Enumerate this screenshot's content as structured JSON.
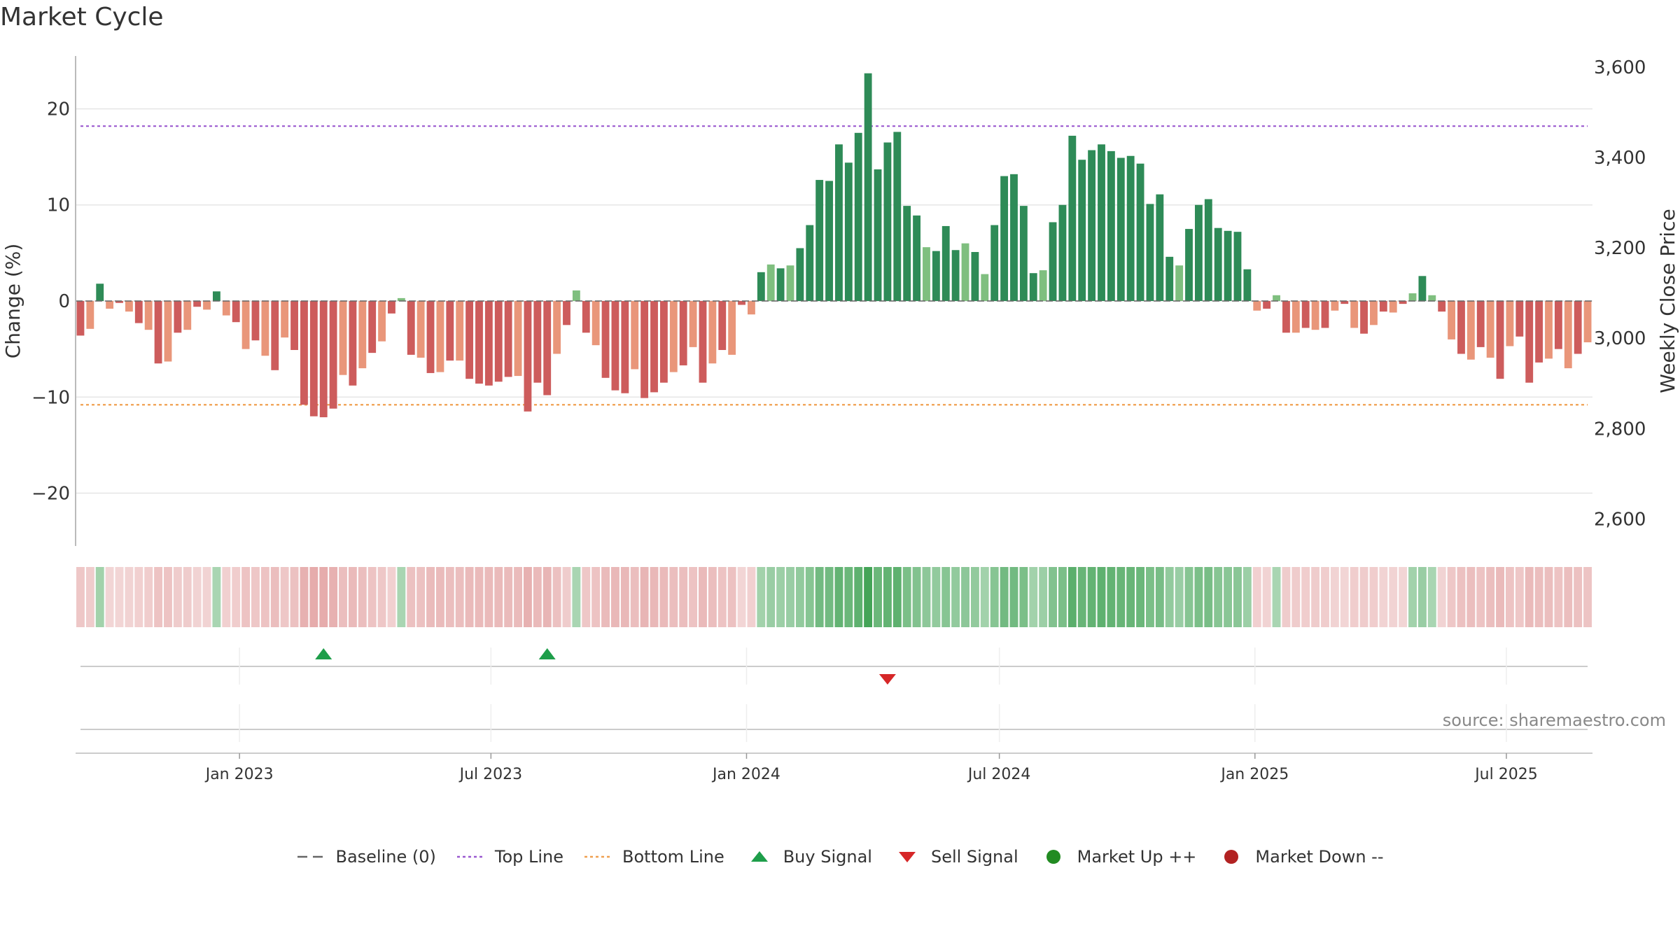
{
  "title": "Market Cycle",
  "source_text": "source: sharemaestro.com",
  "colors": {
    "up_dark": "#2e8b57",
    "up_light": "#7fbf7f",
    "down_dark": "#cd5c5c",
    "down_light": "#e9967a",
    "top_line": "#9b59d0",
    "bottom_line": "#f0a050",
    "buy": "#1e9e4a",
    "sell": "#d62728",
    "market_up": "#228b22",
    "market_down": "#b22222",
    "baseline": "#666666"
  },
  "legend": [
    {
      "key": "baseline",
      "label": "Baseline (0)",
      "symbol": "dash-line"
    },
    {
      "key": "top_line",
      "label": "Top Line",
      "symbol": "dotted-line"
    },
    {
      "key": "bottom_line",
      "label": "Bottom Line",
      "symbol": "dotted-line"
    },
    {
      "key": "buy",
      "label": "Buy Signal",
      "symbol": "triangle-up"
    },
    {
      "key": "sell",
      "label": "Sell Signal",
      "symbol": "triangle-down"
    },
    {
      "key": "market_up",
      "label": "Market Up ++",
      "symbol": "circle"
    },
    {
      "key": "market_down",
      "label": "Market Down --",
      "symbol": "circle"
    }
  ],
  "chart_data": {
    "type": "bar",
    "title": "Market Cycle",
    "ylabel_left": "Change (%)",
    "ylabel_right": "Weekly Close Price",
    "ylim_left": [
      -25.5,
      25.5
    ],
    "ylim_right": [
      2540,
      3625
    ],
    "yticks_left": [
      20,
      10,
      0,
      -10,
      -20
    ],
    "yticks_left_labels": [
      "20",
      "10",
      "0",
      "−10",
      "−20"
    ],
    "yticks_right": [
      3600,
      3400,
      3200,
      3000,
      2800,
      2600
    ],
    "yticks_right_labels": [
      "3,600",
      "3,400",
      "3,200",
      "3,000",
      "2,800",
      "2,600"
    ],
    "top_line": 18.2,
    "bottom_line": -10.8,
    "x_start": "2022-09-05",
    "x_ticks": [
      {
        "label": "Jan 2023",
        "date": "2023-01-01"
      },
      {
        "label": "Jul 2023",
        "date": "2023-07-01"
      },
      {
        "label": "Jan 2024",
        "date": "2024-01-01"
      },
      {
        "label": "Jul 2024",
        "date": "2024-07-01"
      },
      {
        "label": "Jan 2025",
        "date": "2025-01-01"
      },
      {
        "label": "Jul 2025",
        "date": "2025-07-01"
      }
    ],
    "grid": true,
    "legend_position": "bottom",
    "values": [
      -3.6,
      -2.9,
      1.8,
      -0.8,
      -0.2,
      -1.1,
      -2.3,
      -3.0,
      -6.5,
      -6.3,
      -3.3,
      -3.0,
      -0.6,
      -0.9,
      1.0,
      -1.5,
      -2.2,
      -5.0,
      -4.1,
      -5.7,
      -7.2,
      -3.8,
      -5.1,
      -10.8,
      -12.0,
      -12.1,
      -11.2,
      -7.7,
      -8.8,
      -7.0,
      -5.4,
      -4.2,
      -1.3,
      0.3,
      -5.6,
      -5.9,
      -7.5,
      -7.4,
      -6.2,
      -6.2,
      -8.1,
      -8.6,
      -8.8,
      -8.4,
      -7.9,
      -7.8,
      -11.5,
      -8.5,
      -9.8,
      -5.5,
      -2.5,
      1.1,
      -3.3,
      -4.6,
      -8.0,
      -9.3,
      -9.6,
      -7.1,
      -10.1,
      -9.5,
      -8.5,
      -7.4,
      -6.7,
      -4.8,
      -8.5,
      -6.5,
      -5.1,
      -5.6,
      -0.4,
      -1.4,
      3.0,
      3.8,
      3.4,
      3.7,
      5.5,
      7.9,
      12.6,
      12.5,
      16.3,
      14.4,
      17.5,
      23.7,
      13.7,
      16.5,
      17.6,
      9.9,
      8.9,
      5.6,
      5.2,
      7.8,
      5.3,
      6.0,
      5.1,
      2.8,
      7.9,
      13.0,
      13.2,
      9.9,
      2.9,
      3.2,
      8.2,
      10.0,
      17.2,
      14.7,
      15.7,
      16.3,
      15.6,
      14.9,
      15.1,
      14.3,
      10.1,
      11.1,
      4.6,
      3.7,
      7.5,
      10.0,
      10.6,
      7.6,
      7.3,
      7.2,
      3.3,
      -1.0,
      -0.8,
      0.6,
      -3.3,
      -3.3,
      -2.8,
      -3.0,
      -2.8,
      -1.0,
      -0.3,
      -2.8,
      -3.4,
      -2.5,
      -1.1,
      -1.2,
      -0.3,
      0.8,
      2.6,
      0.6,
      -1.1,
      -4.0,
      -5.5,
      -6.1,
      -4.8,
      -5.9,
      -8.1,
      -4.7,
      -3.7,
      -8.5,
      -6.4,
      -6.0,
      -5.0,
      -7.0,
      -5.5,
      -4.3
    ],
    "strength": [
      0.35,
      0.3,
      0.35,
      0.2,
      0.2,
      0.22,
      0.25,
      0.28,
      0.4,
      0.4,
      0.3,
      0.3,
      0.22,
      0.22,
      0.3,
      0.25,
      0.28,
      0.4,
      0.35,
      0.4,
      0.45,
      0.35,
      0.42,
      0.6,
      0.65,
      0.65,
      0.6,
      0.45,
      0.5,
      0.45,
      0.4,
      0.35,
      0.25,
      0.3,
      0.42,
      0.42,
      0.48,
      0.48,
      0.45,
      0.45,
      0.5,
      0.5,
      0.5,
      0.5,
      0.48,
      0.48,
      0.6,
      0.5,
      0.55,
      0.42,
      0.3,
      0.3,
      0.35,
      0.4,
      0.48,
      0.52,
      0.52,
      0.45,
      0.55,
      0.52,
      0.5,
      0.45,
      0.45,
      0.4,
      0.5,
      0.45,
      0.4,
      0.42,
      0.2,
      0.25,
      0.35,
      0.4,
      0.38,
      0.4,
      0.45,
      0.52,
      0.65,
      0.65,
      0.75,
      0.7,
      0.78,
      0.95,
      0.7,
      0.75,
      0.78,
      0.6,
      0.55,
      0.48,
      0.45,
      0.52,
      0.45,
      0.48,
      0.45,
      0.35,
      0.52,
      0.65,
      0.65,
      0.6,
      0.35,
      0.38,
      0.55,
      0.6,
      0.8,
      0.72,
      0.75,
      0.78,
      0.75,
      0.72,
      0.72,
      0.7,
      0.6,
      0.62,
      0.45,
      0.4,
      0.52,
      0.6,
      0.62,
      0.52,
      0.5,
      0.5,
      0.38,
      0.25,
      0.22,
      0.3,
      0.3,
      0.3,
      0.28,
      0.3,
      0.28,
      0.22,
      0.2,
      0.28,
      0.3,
      0.28,
      0.22,
      0.22,
      0.2,
      0.35,
      0.4,
      0.3,
      0.22,
      0.35,
      0.42,
      0.45,
      0.4,
      0.45,
      0.5,
      0.4,
      0.35,
      0.5,
      0.45,
      0.45,
      0.4,
      0.45,
      0.42,
      0.38
    ],
    "buy_signals": [
      "2023-02-27",
      "2023-08-07"
    ],
    "sell_signals": [
      "2024-04-08"
    ]
  }
}
